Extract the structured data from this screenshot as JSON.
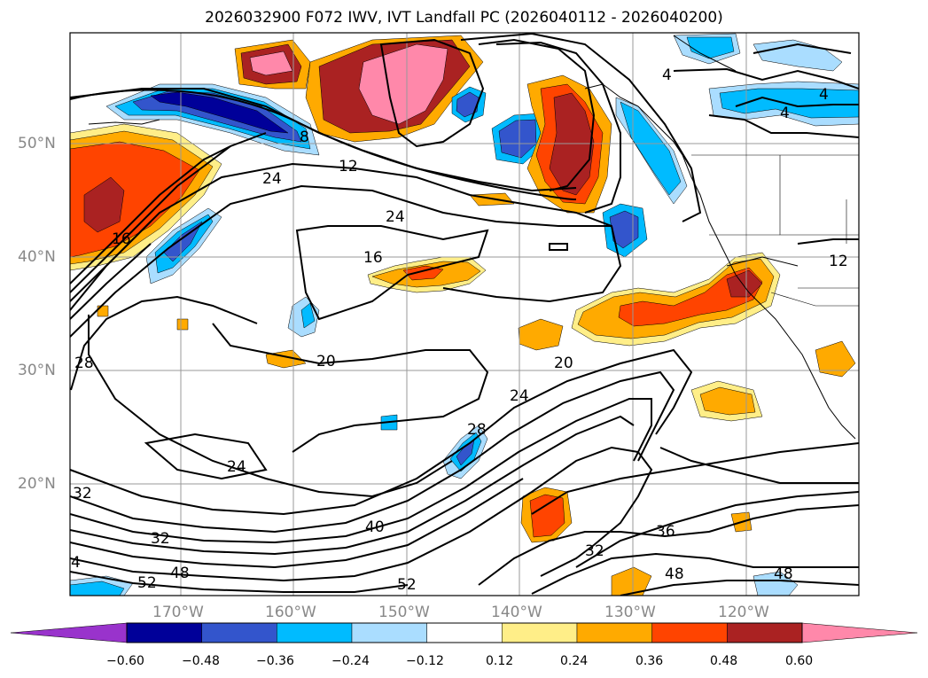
{
  "title": "2026032900 F072 IWV, IVT Landfall PC (2026040112 - 2026040200)",
  "lat_labels": [
    "50°N",
    "40°N",
    "30°N",
    "20°N"
  ],
  "lon_labels": [
    "170°W",
    "160°W",
    "150°W",
    "140°W",
    "130°W",
    "120°W"
  ],
  "contour_labels": [
    {
      "text": "8"
    },
    {
      "text": "12"
    },
    {
      "text": "24"
    },
    {
      "text": "24"
    },
    {
      "text": "16"
    },
    {
      "text": "16"
    },
    {
      "text": "20"
    },
    {
      "text": "20"
    },
    {
      "text": "24"
    },
    {
      "text": "28"
    },
    {
      "text": "28"
    },
    {
      "text": "24"
    },
    {
      "text": "32"
    },
    {
      "text": "32"
    },
    {
      "text": "40"
    },
    {
      "text": "48"
    },
    {
      "text": "52"
    },
    {
      "text": "52"
    },
    {
      "text": "36"
    },
    {
      "text": "32"
    },
    {
      "text": "48"
    },
    {
      "text": "48"
    },
    {
      "text": "4"
    },
    {
      "text": "4"
    },
    {
      "text": "4"
    },
    {
      "text": "12"
    },
    {
      "text": "4"
    }
  ],
  "colorbar": {
    "ticks": [
      "−0.60",
      "−0.48",
      "−0.36",
      "−0.24",
      "−0.12",
      "0.12",
      "0.24",
      "0.36",
      "0.48",
      "0.60"
    ],
    "colors": [
      "#9933cc",
      "#000099",
      "#3355cc",
      "#00bbff",
      "#aaddff",
      "#ffffff",
      "#ffee88",
      "#ffaa00",
      "#ff4400",
      "#aa2222",
      "#ff88aa"
    ]
  },
  "shading_colors": {
    "pink": "#ff88aa",
    "darkred": "#aa2222",
    "red": "#ff4400",
    "orange": "#ffaa00",
    "yellow": "#ffee88",
    "lightblue": "#aaddff",
    "cyan": "#00bbff",
    "blue": "#3355cc",
    "navy": "#000099"
  }
}
